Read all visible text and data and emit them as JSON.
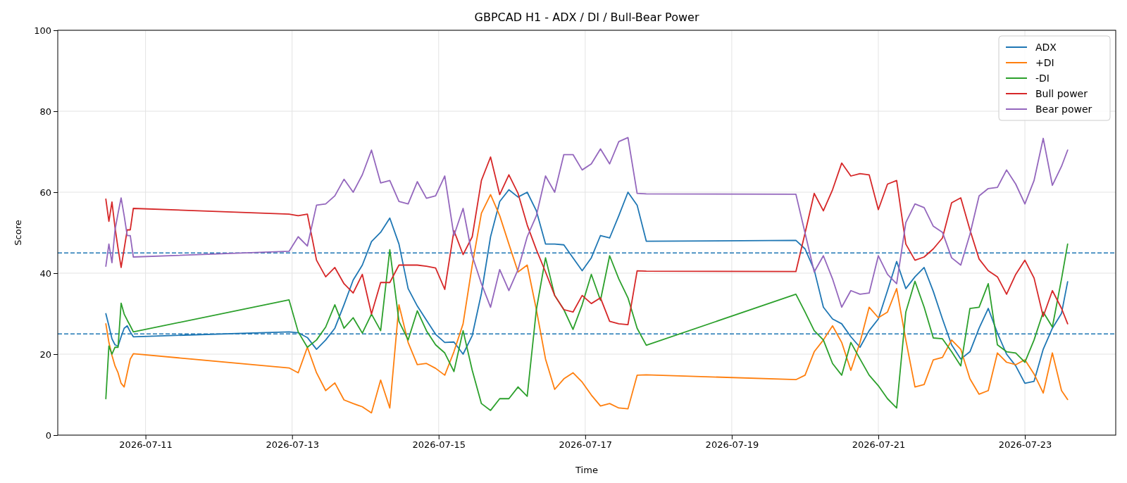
{
  "chart_data": {
    "type": "line",
    "title": "GBPCAD H1 - ADX / DI / Bull-Bear Power",
    "xlabel": "Time",
    "ylabel": "Score",
    "x": [
      "2026-07-10T11:00",
      "2026-07-10T12:00",
      "2026-07-10T13:00",
      "2026-07-10T14:00",
      "2026-07-10T15:00",
      "2026-07-10T16:00",
      "2026-07-10T17:00",
      "2026-07-10T18:00",
      "2026-07-10T19:00",
      "2026-07-10T20:00",
      "2026-07-12T23:00",
      "2026-07-13T02:00",
      "2026-07-13T05:00",
      "2026-07-13T08:00",
      "2026-07-13T11:00",
      "2026-07-13T14:00",
      "2026-07-13T17:00",
      "2026-07-13T20:00",
      "2026-07-13T23:00",
      "2026-07-14T02:00",
      "2026-07-14T05:00",
      "2026-07-14T08:00",
      "2026-07-14T11:00",
      "2026-07-14T14:00",
      "2026-07-14T17:00",
      "2026-07-14T20:00",
      "2026-07-14T23:00",
      "2026-07-15T02:00",
      "2026-07-15T05:00",
      "2026-07-15T08:00",
      "2026-07-15T11:00",
      "2026-07-15T14:00",
      "2026-07-15T17:00",
      "2026-07-15T20:00",
      "2026-07-15T23:00",
      "2026-07-16T02:00",
      "2026-07-16T05:00",
      "2026-07-16T08:00",
      "2026-07-16T11:00",
      "2026-07-16T14:00",
      "2026-07-16T17:00",
      "2026-07-16T20:00",
      "2026-07-16T23:00",
      "2026-07-17T02:00",
      "2026-07-17T05:00",
      "2026-07-17T08:00",
      "2026-07-17T11:00",
      "2026-07-17T14:00",
      "2026-07-17T17:00",
      "2026-07-17T20:00",
      "2026-07-19T21:00",
      "2026-07-20T00:00",
      "2026-07-20T03:00",
      "2026-07-20T06:00",
      "2026-07-20T09:00",
      "2026-07-20T12:00",
      "2026-07-20T15:00",
      "2026-07-20T18:00",
      "2026-07-20T21:00",
      "2026-07-21T00:00",
      "2026-07-21T03:00",
      "2026-07-21T06:00",
      "2026-07-21T09:00",
      "2026-07-21T12:00",
      "2026-07-21T15:00",
      "2026-07-21T18:00",
      "2026-07-21T21:00",
      "2026-07-22T00:00",
      "2026-07-22T03:00",
      "2026-07-22T06:00",
      "2026-07-22T09:00",
      "2026-07-22T12:00",
      "2026-07-22T15:00",
      "2026-07-22T18:00",
      "2026-07-22T21:00",
      "2026-07-23T00:00",
      "2026-07-23T03:00",
      "2026-07-23T06:00",
      "2026-07-23T09:00",
      "2026-07-23T12:00",
      "2026-07-23T14:00"
    ],
    "series": [
      {
        "name": "ADX",
        "color": "#1f77b4",
        "values": [
          30.0,
          27,
          23.8,
          22.3,
          22,
          24.3,
          26.4,
          27,
          25.5,
          24.3,
          25.5,
          25.3,
          24.1,
          21.2,
          23.5,
          26.4,
          32.2,
          38.3,
          42,
          47.8,
          50.1,
          53.6,
          47.2,
          36.2,
          31.9,
          28.4,
          24.9,
          22.9,
          23,
          20,
          24.6,
          35,
          49,
          57.7,
          60.6,
          58.8,
          60,
          55.4,
          47.2,
          47.2,
          47,
          43.8,
          40.6,
          43.8,
          49.3,
          48.7,
          54.2,
          60,
          56.8,
          47.9,
          48.1,
          46,
          40.8,
          31.6,
          28.7,
          27.5,
          24.3,
          21.7,
          25.8,
          28.7,
          35.7,
          42.9,
          36.2,
          39.1,
          41.4,
          35.5,
          28.7,
          22.3,
          18.8,
          20.6,
          26.4,
          31.3,
          25.2,
          20,
          17.1,
          12.8,
          13.3,
          21.2,
          26.4,
          30.1,
          37.9
        ]
      },
      {
        "name": "+DI",
        "color": "#ff7f0e",
        "values": [
          27.5,
          22.9,
          19.7,
          17.1,
          15.4,
          12.8,
          11.9,
          15.4,
          18.8,
          20.1,
          16.6,
          15.4,
          21.7,
          15.4,
          11,
          12.9,
          8.7,
          7.8,
          7,
          5.5,
          13.6,
          6.7,
          32.2,
          22.9,
          17.4,
          17.7,
          16.5,
          14.8,
          20.6,
          27.5,
          42,
          54.8,
          59.4,
          54.2,
          47.2,
          40.3,
          42,
          31,
          18.8,
          11.3,
          13.9,
          15.4,
          13.1,
          9.9,
          7.2,
          7.8,
          6.7,
          6.5,
          14.8,
          14.9,
          13.7,
          14.8,
          20.6,
          23.5,
          27,
          22.9,
          16,
          22.9,
          31.6,
          29,
          30.4,
          36.2,
          23.5,
          11.9,
          12.5,
          18.6,
          19.2,
          23.5,
          21.2,
          13.9,
          10.1,
          11,
          20.3,
          18,
          17.4,
          18.6,
          15.1,
          10.4,
          20.3,
          11,
          8.8
        ]
      },
      {
        "name": "-DI",
        "color": "#2ca02c",
        "values": [
          9,
          22,
          20,
          21.7,
          21.7,
          32.6,
          29.9,
          28.4,
          27,
          25.5,
          33.4,
          25.5,
          21.7,
          23.5,
          26.7,
          32.2,
          26.4,
          29,
          25.2,
          29.9,
          25.8,
          45.8,
          28.1,
          23.5,
          30.7,
          25.8,
          22.3,
          20.3,
          15.7,
          25.8,
          16,
          7.8,
          6.1,
          9,
          9,
          11.9,
          9.6,
          31,
          43.8,
          34.5,
          31,
          26.1,
          32.2,
          39.7,
          33.3,
          44.3,
          38.6,
          33.9,
          26.4,
          22.2,
          34.8,
          30.4,
          25.8,
          23.5,
          17.7,
          14.8,
          22.9,
          18.8,
          14.8,
          12.2,
          9,
          6.7,
          30.4,
          38,
          31.6,
          24,
          23.8,
          20.6,
          17.1,
          31.3,
          31.6,
          37.4,
          22.3,
          20.6,
          20.3,
          18,
          23.5,
          30.4,
          26.7,
          38.6,
          47.2
        ]
      },
      {
        "name": "Bull power",
        "color": "#d62728",
        "values": [
          58.3,
          52.8,
          57.6,
          51.3,
          46.1,
          41.4,
          46,
          50.7,
          50.7,
          56,
          54.6,
          54.2,
          54.6,
          43.2,
          39.1,
          41.4,
          37.4,
          35.1,
          39.7,
          29.9,
          37.7,
          37.7,
          42,
          42,
          42,
          41.7,
          41.3,
          36,
          50.5,
          44.6,
          49,
          62.9,
          68.7,
          59.4,
          64.3,
          59.7,
          51.9,
          45.8,
          40.3,
          34.5,
          31,
          30.4,
          34.5,
          32.5,
          33.9,
          28.1,
          27.5,
          27.3,
          40.6,
          40.5,
          40.4,
          49.9,
          59.7,
          55.4,
          60.6,
          67.2,
          64,
          64.6,
          64.3,
          55.7,
          62,
          62.9,
          47.2,
          43.2,
          44,
          46,
          48.7,
          57.4,
          58.6,
          50.7,
          43.5,
          40.6,
          39.1,
          34.8,
          39.7,
          43.2,
          38.8,
          29.3,
          35.7,
          31.3,
          27.5
        ]
      },
      {
        "name": "Bear power",
        "color": "#9467bd",
        "values": [
          41.7,
          47.2,
          42.6,
          50.7,
          54.8,
          58.6,
          54.2,
          49.3,
          49.3,
          44,
          45.4,
          49,
          46.7,
          56.8,
          57.1,
          59.1,
          63.2,
          60,
          64.3,
          70.4,
          62.3,
          62.9,
          57.7,
          57.1,
          62.6,
          58.5,
          59.1,
          64,
          49.3,
          56,
          44.3,
          37.4,
          31.6,
          40.9,
          35.7,
          40.9,
          49,
          54.2,
          64,
          60,
          69.3,
          69.3,
          65.5,
          67,
          70.7,
          67,
          72.5,
          73.5,
          59.7,
          59.6,
          59.5,
          49.9,
          40.3,
          44.3,
          38.6,
          31.6,
          35.7,
          34.8,
          35.1,
          44.3,
          39.7,
          37.4,
          52.5,
          57.1,
          56.2,
          51.6,
          50.1,
          43.8,
          42,
          49.6,
          59.1,
          60.9,
          61.2,
          65.5,
          62,
          57.1,
          62.9,
          73.3,
          61.7,
          66.4,
          70.4
        ]
      }
    ],
    "xlim": [
      "2026-07-09T19:15",
      "2026-07-24T05:45"
    ],
    "xticks": [
      "2026-07-11",
      "2026-07-13",
      "2026-07-15",
      "2026-07-17",
      "2026-07-19",
      "2026-07-21",
      "2026-07-23"
    ],
    "ylim": [
      0,
      100
    ],
    "yticks": [
      0,
      20,
      40,
      60,
      80,
      100
    ],
    "ref_lines": [
      {
        "axis": "y",
        "value": 45,
        "color": "#1f77b4",
        "line_style": "dashed"
      },
      {
        "axis": "y",
        "value": 25,
        "color": "#1f77b4",
        "line_style": "dashed"
      }
    ],
    "grid": true,
    "legend": "top right",
    "line_style": "solid"
  }
}
